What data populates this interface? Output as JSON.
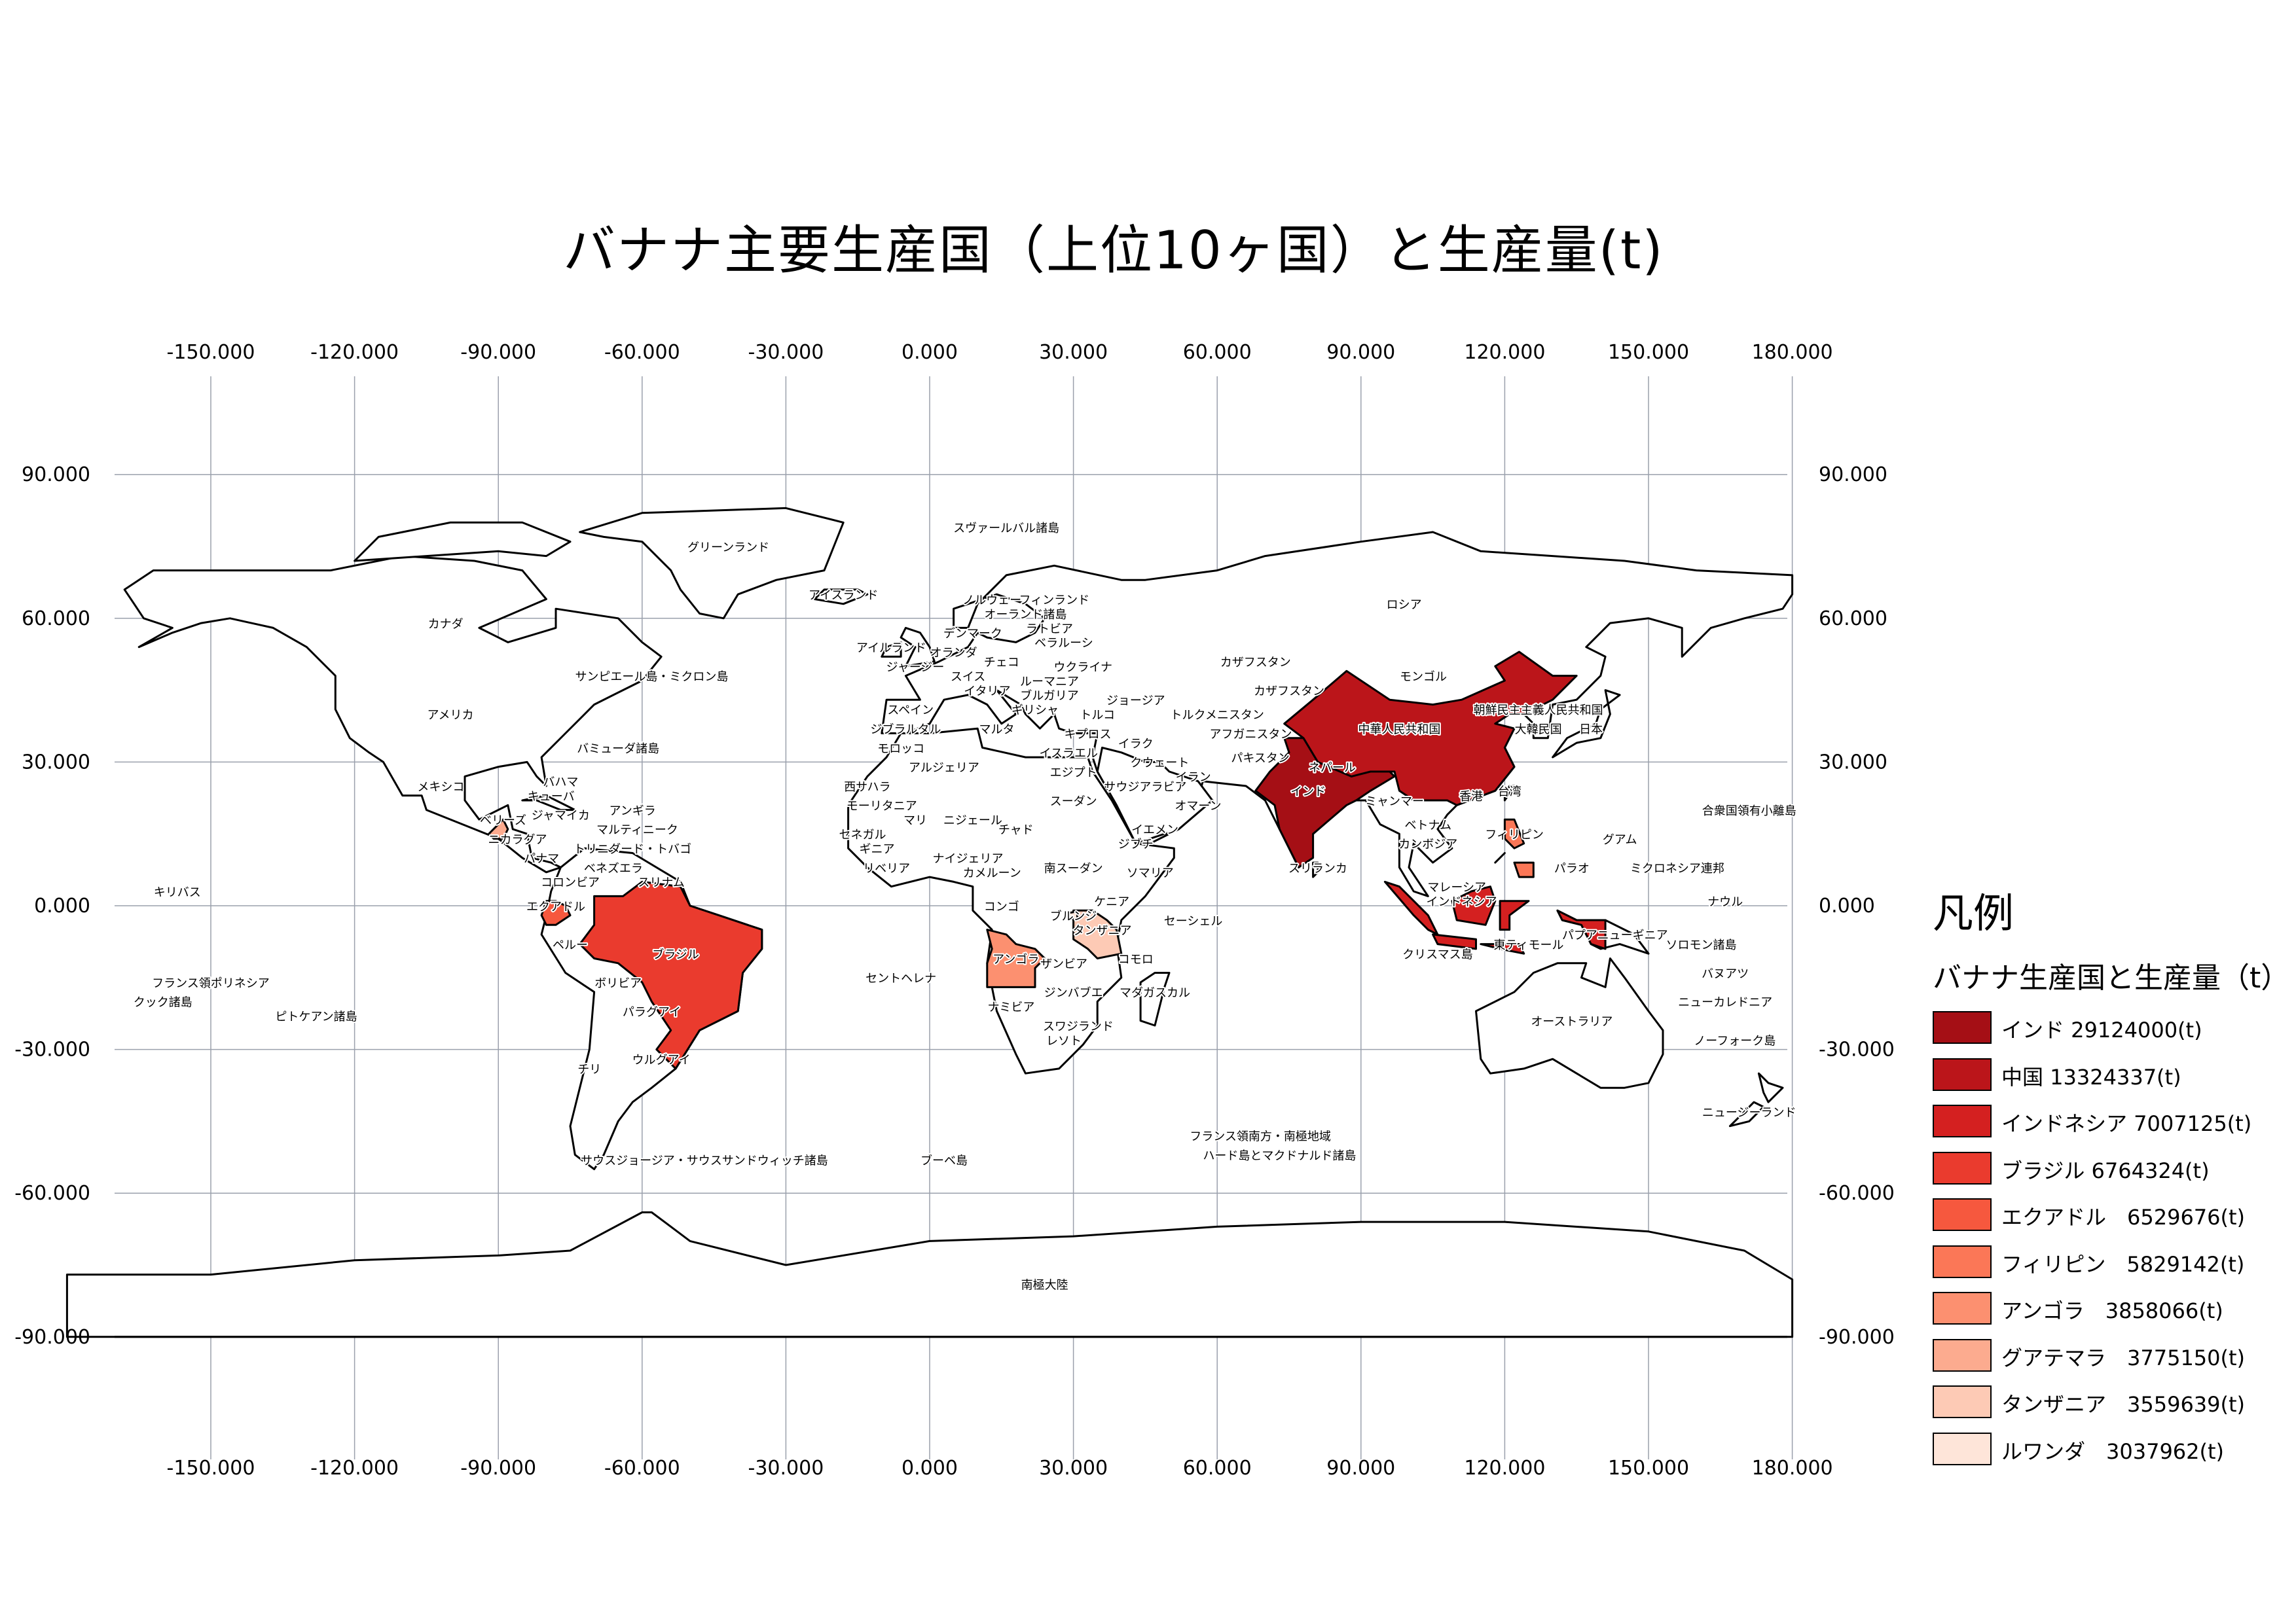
{
  "title": "バナナ主要生産国（上位10ヶ国）と生産量(t)",
  "axes": {
    "x_ticks": [
      "-150.000",
      "-120.000",
      "-90.000",
      "-60.000",
      "-30.000",
      "0.000",
      "30.000",
      "60.000",
      "90.000",
      "120.000",
      "150.000",
      "180.000"
    ],
    "y_ticks": [
      "90.000",
      "60.000",
      "30.000",
      "0.000",
      "-30.000",
      "-60.000",
      "-90.000"
    ]
  },
  "legend": {
    "title": "凡例",
    "subtitle": "バナナ生産国と生産量（t）",
    "items": [
      {
        "label": "インド 29124000(t)",
        "color": "#a50f15"
      },
      {
        "label": "中国 13324337(t)",
        "color": "#bb151a"
      },
      {
        "label": "インドネシア 7007125(t)",
        "color": "#d42020"
      },
      {
        "label": "ブラジル 6764324(t)",
        "color": "#ea3b2e"
      },
      {
        "label": "エクアドル　6529676(t)",
        "color": "#f6583e"
      },
      {
        "label": "フィリピン　5829142(t)",
        "color": "#fb7757"
      },
      {
        "label": "アンゴラ　3858066(t)",
        "color": "#fc9070"
      },
      {
        "label": "グアテマラ　3775150(t)",
        "color": "#fcab8f"
      },
      {
        "label": "タンザニア　3559639(t)",
        "color": "#fdcab5"
      },
      {
        "label": "ルワンダ　3037962(t)",
        "color": "#fee5d9"
      }
    ]
  },
  "highlighted_countries": [
    {
      "name": "インド",
      "value": 29124000,
      "color": "#a50f15"
    },
    {
      "name": "中華人民共和国",
      "value": 13324337,
      "color": "#bb151a"
    },
    {
      "name": "インドネシア",
      "value": 7007125,
      "color": "#d42020"
    },
    {
      "name": "ブラジル",
      "value": 6764324,
      "color": "#ea3b2e"
    },
    {
      "name": "エクアドル",
      "value": 6529676,
      "color": "#f6583e"
    },
    {
      "name": "フィリピン",
      "value": 5829142,
      "color": "#fb7757"
    },
    {
      "name": "アンゴラ",
      "value": 3858066,
      "color": "#fc9070"
    },
    {
      "name": "グアテマラ",
      "value": 3775150,
      "color": "#fcab8f"
    },
    {
      "name": "タンザニア",
      "value": 3559639,
      "color": "#fdcab5"
    },
    {
      "name": "ルワンダ",
      "value": 3037962,
      "color": "#fee5d9"
    }
  ],
  "labels": [
    {
      "text": "グリーンランド",
      "lon": -42,
      "lat": 74
    },
    {
      "text": "スヴァールバル諸島",
      "lon": 16,
      "lat": 78
    },
    {
      "text": "アイスランド",
      "lon": -18,
      "lat": 64
    },
    {
      "text": "カナダ",
      "lon": -101,
      "lat": 58
    },
    {
      "text": "アメリカ",
      "lon": -100,
      "lat": 39
    },
    {
      "text": "サンピエール島・ミクロン島",
      "lon": -58,
      "lat": 47
    },
    {
      "text": "バミューダ諸島",
      "lon": -65,
      "lat": 32
    },
    {
      "text": "メキシコ",
      "lon": -102,
      "lat": 24
    },
    {
      "text": "バハマ",
      "lon": -77,
      "lat": 25
    },
    {
      "text": "キューバ",
      "lon": -79,
      "lat": 22
    },
    {
      "text": "ベリーズ",
      "lon": -89,
      "lat": 17
    },
    {
      "text": "ジャマイカ",
      "lon": -77,
      "lat": 18
    },
    {
      "text": "アンギラ",
      "lon": -62,
      "lat": 19
    },
    {
      "text": "マルティニーク",
      "lon": -61,
      "lat": 15
    },
    {
      "text": "ニカラグア",
      "lon": -86,
      "lat": 13
    },
    {
      "text": "トリニダード・トバゴ",
      "lon": -62,
      "lat": 11
    },
    {
      "text": "パナマ",
      "lon": -81,
      "lat": 9
    },
    {
      "text": "ベネズエラ",
      "lon": -66,
      "lat": 7
    },
    {
      "text": "コロンビア",
      "lon": -75,
      "lat": 4
    },
    {
      "text": "スリナム",
      "lon": -56,
      "lat": 4
    },
    {
      "text": "エクアドル",
      "lon": -78,
      "lat": -1
    },
    {
      "text": "ブラジル",
      "lon": -53,
      "lat": -11
    },
    {
      "text": "ペルー",
      "lon": -75,
      "lat": -9
    },
    {
      "text": "ボリビア",
      "lon": -65,
      "lat": -17
    },
    {
      "text": "パラグアイ",
      "lon": -58,
      "lat": -23
    },
    {
      "text": "ウルグアイ",
      "lon": -56,
      "lat": -33
    },
    {
      "text": "チリ",
      "lon": -71,
      "lat": -35
    },
    {
      "text": "サウスジョージア・サウスサンドウィッチ諸島",
      "lon": -47,
      "lat": -54
    },
    {
      "text": "ブーベ島",
      "lon": 3,
      "lat": -54
    },
    {
      "text": "セントヘレナ",
      "lon": -6,
      "lat": -16
    },
    {
      "text": "キリバス",
      "lon": -157,
      "lat": 2
    },
    {
      "text": "フランス領ポリネシア",
      "lon": -150,
      "lat": -17
    },
    {
      "text": "クック諸島",
      "lon": -160,
      "lat": -21
    },
    {
      "text": "ピトケアン諸島",
      "lon": -128,
      "lat": -24
    },
    {
      "text": "南極大陸",
      "lon": 24,
      "lat": -80
    },
    {
      "text": "ノルウェー",
      "lon": 13,
      "lat": 63
    },
    {
      "text": "フィンランド",
      "lon": 26,
      "lat": 63
    },
    {
      "text": "オーランド諸島",
      "lon": 20,
      "lat": 60
    },
    {
      "text": "アイルランド",
      "lon": -8,
      "lat": 53
    },
    {
      "text": "デンマーク",
      "lon": 9,
      "lat": 56
    },
    {
      "text": "ラトビア",
      "lon": 25,
      "lat": 57
    },
    {
      "text": "オランダ",
      "lon": 5,
      "lat": 52
    },
    {
      "text": "ベラルーシ",
      "lon": 28,
      "lat": 54
    },
    {
      "text": "ジャージー",
      "lon": -3,
      "lat": 49
    },
    {
      "text": "チェコ",
      "lon": 15,
      "lat": 50
    },
    {
      "text": "ウクライナ",
      "lon": 32,
      "lat": 49
    },
    {
      "text": "スイス",
      "lon": 8,
      "lat": 47
    },
    {
      "text": "ルーマニア",
      "lon": 25,
      "lat": 46
    },
    {
      "text": "イタリア",
      "lon": 12,
      "lat": 44
    },
    {
      "text": "ブルガリア",
      "lon": 25,
      "lat": 43
    },
    {
      "text": "スペイン",
      "lon": -4,
      "lat": 40
    },
    {
      "text": "ギリシャ",
      "lon": 22,
      "lat": 40
    },
    {
      "text": "ジブラルタル",
      "lon": -5,
      "lat": 36
    },
    {
      "text": "マルタ",
      "lon": 14,
      "lat": 36
    },
    {
      "text": "トルコ",
      "lon": 35,
      "lat": 39
    },
    {
      "text": "ジョージア",
      "lon": 43,
      "lat": 42
    },
    {
      "text": "キプロス",
      "lon": 33,
      "lat": 35
    },
    {
      "text": "モロッコ",
      "lon": -6,
      "lat": 32
    },
    {
      "text": "アルジェリア",
      "lon": 3,
      "lat": 28
    },
    {
      "text": "イスラエル",
      "lon": 29,
      "lat": 31
    },
    {
      "text": "イラク",
      "lon": 43,
      "lat": 33
    },
    {
      "text": "クウェート",
      "lon": 48,
      "lat": 29
    },
    {
      "text": "エジプト",
      "lon": 30,
      "lat": 27
    },
    {
      "text": "西サハラ",
      "lon": -13,
      "lat": 24
    },
    {
      "text": "サウジアラビア",
      "lon": 45,
      "lat": 24
    },
    {
      "text": "モーリタニア",
      "lon": -10,
      "lat": 20
    },
    {
      "text": "スーダン",
      "lon": 30,
      "lat": 21
    },
    {
      "text": "オマーン",
      "lon": 56,
      "lat": 20
    },
    {
      "text": "マリ",
      "lon": -3,
      "lat": 17
    },
    {
      "text": "ニジェール",
      "lon": 9,
      "lat": 17
    },
    {
      "text": "セネガル",
      "lon": -14,
      "lat": 14
    },
    {
      "text": "チャド",
      "lon": 18,
      "lat": 15
    },
    {
      "text": "イエメン",
      "lon": 47,
      "lat": 15
    },
    {
      "text": "ギニア",
      "lon": -11,
      "lat": 11
    },
    {
      "text": "ナイジェリア",
      "lon": 8,
      "lat": 9
    },
    {
      "text": "ジブチ",
      "lon": 43,
      "lat": 12
    },
    {
      "text": "リベリア",
      "lon": -9,
      "lat": 7
    },
    {
      "text": "カメルーン",
      "lon": 13,
      "lat": 6
    },
    {
      "text": "南スーダン",
      "lon": 30,
      "lat": 7
    },
    {
      "text": "ソマリア",
      "lon": 46,
      "lat": 6
    },
    {
      "text": "コンゴ",
      "lon": 15,
      "lat": -1
    },
    {
      "text": "ブルンジ",
      "lon": 30,
      "lat": -3
    },
    {
      "text": "ケニア",
      "lon": 38,
      "lat": 0
    },
    {
      "text": "タンザニア",
      "lon": 36,
      "lat": -6
    },
    {
      "text": "セーシェル",
      "lon": 55,
      "lat": -4
    },
    {
      "text": "アンゴラ",
      "lon": 18,
      "lat": -12
    },
    {
      "text": "ザンビア",
      "lon": 28,
      "lat": -13
    },
    {
      "text": "コモロ",
      "lon": 43,
      "lat": -12
    },
    {
      "text": "ジンバブエ",
      "lon": 30,
      "lat": -19
    },
    {
      "text": "マダガスカル",
      "lon": 47,
      "lat": -19
    },
    {
      "text": "ナミビア",
      "lon": 17,
      "lat": -22
    },
    {
      "text": "スワジランド",
      "lon": 31,
      "lat": -26
    },
    {
      "text": "レソト",
      "lon": 28,
      "lat": -29
    },
    {
      "text": "フランス領南方・南極地域",
      "lon": 69,
      "lat": -49
    },
    {
      "text": "ハード島とマクドナルド諸島",
      "lon": 73,
      "lat": -53
    },
    {
      "text": "ロシア",
      "lon": 99,
      "lat": 62
    },
    {
      "text": "カザフスタン",
      "lon": 68,
      "lat": 50
    },
    {
      "text": "カザフスタン",
      "lon": 75,
      "lat": 44
    },
    {
      "text": "モンゴル",
      "lon": 103,
      "lat": 47
    },
    {
      "text": "トルクメニスタン",
      "lon": 60,
      "lat": 39
    },
    {
      "text": "アフガニスタン",
      "lon": 67,
      "lat": 35
    },
    {
      "text": "パキスタン",
      "lon": 69,
      "lat": 30
    },
    {
      "text": "イラン",
      "lon": 55,
      "lat": 26
    },
    {
      "text": "中華人民共和国",
      "lon": 98,
      "lat": 36
    },
    {
      "text": "朝鮮民主主義人民共和国",
      "lon": 127,
      "lat": 40
    },
    {
      "text": "大韓民国",
      "lon": 127,
      "lat": 36
    },
    {
      "text": "日本",
      "lon": 138,
      "lat": 36
    },
    {
      "text": "ネパール",
      "lon": 84,
      "lat": 28
    },
    {
      "text": "インド",
      "lon": 79,
      "lat": 23
    },
    {
      "text": "ミャンマー",
      "lon": 97,
      "lat": 21
    },
    {
      "text": "香港",
      "lon": 113,
      "lat": 22
    },
    {
      "text": "台湾",
      "lon": 121,
      "lat": 23
    },
    {
      "text": "ベトナム",
      "lon": 104,
      "lat": 16
    },
    {
      "text": "カンボジア",
      "lon": 104,
      "lat": 12
    },
    {
      "text": "フィリピン",
      "lon": 122,
      "lat": 14
    },
    {
      "text": "スリランカ",
      "lon": 81,
      "lat": 7
    },
    {
      "text": "マレーシア",
      "lon": 110,
      "lat": 3
    },
    {
      "text": "インドネシア",
      "lon": 111,
      "lat": 0
    },
    {
      "text": "パラオ",
      "lon": 134,
      "lat": 7
    },
    {
      "text": "グアム",
      "lon": 144,
      "lat": 13
    },
    {
      "text": "ミクロネシア連邦",
      "lon": 156,
      "lat": 7
    },
    {
      "text": "合衆国領有小離島",
      "lon": 171,
      "lat": 19
    },
    {
      "text": "ナウル",
      "lon": 166,
      "lat": 0
    },
    {
      "text": "クリスマス島",
      "lon": 106,
      "lat": -11
    },
    {
      "text": "東ティモール",
      "lon": 125,
      "lat": -9
    },
    {
      "text": "パプアニューギニア",
      "lon": 143,
      "lat": -7
    },
    {
      "text": "ソロモン諸島",
      "lon": 161,
      "lat": -9
    },
    {
      "text": "バヌアツ",
      "lon": 166,
      "lat": -15
    },
    {
      "text": "ニューカレドニア",
      "lon": 166,
      "lat": -21
    },
    {
      "text": "オーストラリア",
      "lon": 134,
      "lat": -25
    },
    {
      "text": "ノーフォーク島",
      "lon": 168,
      "lat": -29
    },
    {
      "text": "ニュージーランド",
      "lon": 171,
      "lat": -44
    }
  ]
}
